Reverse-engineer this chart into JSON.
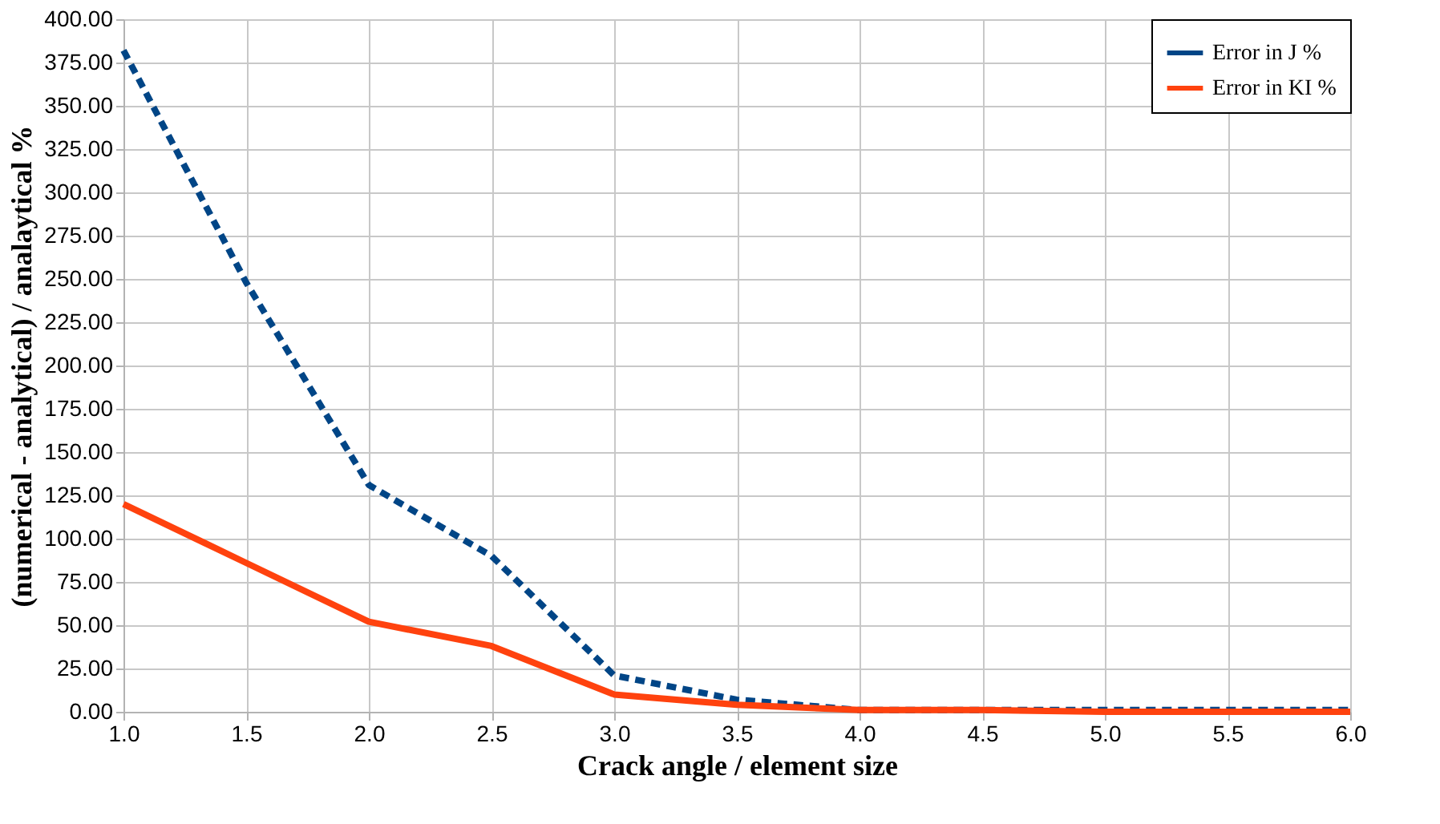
{
  "chart_data": {
    "type": "line",
    "xlabel": "Crack angle / element size",
    "ylabel": "(numerical - analytical) / analaytical %",
    "x": [
      1.0,
      1.5,
      2.0,
      2.5,
      3.0,
      3.5,
      4.0,
      4.5,
      5.0,
      5.5,
      6.0
    ],
    "series": [
      {
        "name": "Error in J %",
        "color": "#004586",
        "line_style": "dashed",
        "values": [
          382,
          248,
          131,
          90,
          21,
          7,
          1,
          1,
          1,
          1,
          1
        ]
      },
      {
        "name": "Error in KI %",
        "color": "#ff420e",
        "line_style": "solid",
        "values": [
          120,
          86,
          52,
          38,
          10,
          4,
          1,
          1,
          0,
          0,
          0
        ]
      }
    ],
    "xlim": [
      1.0,
      6.0
    ],
    "xticks": [
      {
        "value": 1,
        "label": "1.0"
      },
      {
        "value": 1.5,
        "label": "1.5"
      },
      {
        "value": 2,
        "label": "2.0"
      },
      {
        "value": 2.5,
        "label": "2.5"
      },
      {
        "value": 3,
        "label": "3.0"
      },
      {
        "value": 3.5,
        "label": "3.5"
      },
      {
        "value": 4,
        "label": "4.0"
      },
      {
        "value": 4.5,
        "label": "4.5"
      },
      {
        "value": 5,
        "label": "5.0"
      },
      {
        "value": 5.5,
        "label": "5.5"
      },
      {
        "value": 6,
        "label": "6.0"
      }
    ],
    "ylim": [
      0,
      400
    ],
    "yticks": [
      {
        "value": 0,
        "label": "0.00"
      },
      {
        "value": 25,
        "label": "25.00"
      },
      {
        "value": 50,
        "label": "50.00"
      },
      {
        "value": 75,
        "label": "75.00"
      },
      {
        "value": 100,
        "label": "100.00"
      },
      {
        "value": 125,
        "label": "125.00"
      },
      {
        "value": 150,
        "label": "150.00"
      },
      {
        "value": 175,
        "label": "175.00"
      },
      {
        "value": 200,
        "label": "200.00"
      },
      {
        "value": 225,
        "label": "225.00"
      },
      {
        "value": 250,
        "label": "250.00"
      },
      {
        "value": 275,
        "label": "275.00"
      },
      {
        "value": 300,
        "label": "300.00"
      },
      {
        "value": 325,
        "label": "325.00"
      },
      {
        "value": 350,
        "label": "350.00"
      },
      {
        "value": 375,
        "label": "375.00"
      },
      {
        "value": 400,
        "label": "400.00"
      }
    ],
    "grid": true,
    "legend": "top right",
    "marker": "none"
  }
}
